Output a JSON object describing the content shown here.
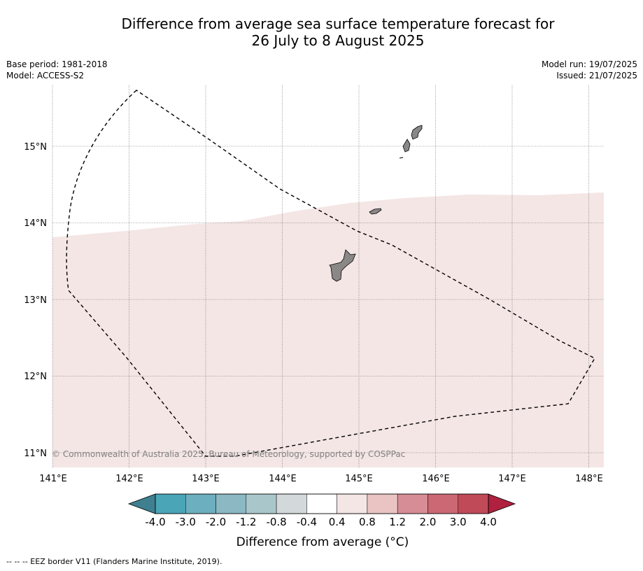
{
  "title": {
    "line1": "Difference from average sea surface temperature forecast for",
    "line2": "26 July to 8 August 2025"
  },
  "meta": {
    "base_period": "Base period: 1981-2018",
    "model": "Model: ACCESS-S2",
    "model_run": "Model run: 19/07/2025",
    "issued": "Issued: 21/07/2025"
  },
  "map": {
    "lon_ticks": [
      "141°E",
      "142°E",
      "143°E",
      "144°E",
      "145°E",
      "146°E",
      "147°E",
      "148°E"
    ],
    "lat_ticks": [
      "15°N",
      "14°N",
      "13°N",
      "12°N",
      "11°N"
    ],
    "copyright": "© Commonwealth of Australia 2025, Bureau of Meteorology, supported by COSPPac",
    "anomaly_fill_color": "#f4e6e5",
    "anomaly_category": "0.4 to 0.8",
    "islands": [
      "Guam",
      "Rota",
      "Tinian",
      "Saipan"
    ]
  },
  "colorbar": {
    "labels": [
      "-4.0",
      "-3.0",
      "-2.0",
      "-1.2",
      "-0.8",
      "-0.4",
      "0.4",
      "0.8",
      "1.2",
      "2.0",
      "3.0",
      "4.0"
    ],
    "colors": [
      "#4aa5b7",
      "#6cafbe",
      "#8bb8c3",
      "#a9c7cb",
      "#d3d9db",
      "#ffffff",
      "#f4e6e5",
      "#e9c4c2",
      "#d78d95",
      "#cb6873",
      "#c04a58"
    ],
    "under_color": "#3f8090",
    "over_color": "#b0213f",
    "title": "Difference from average (°C)"
  },
  "legend": {
    "eez": "--  --  -- EEZ border V11 (Flanders Marine Institute, 2019)."
  }
}
